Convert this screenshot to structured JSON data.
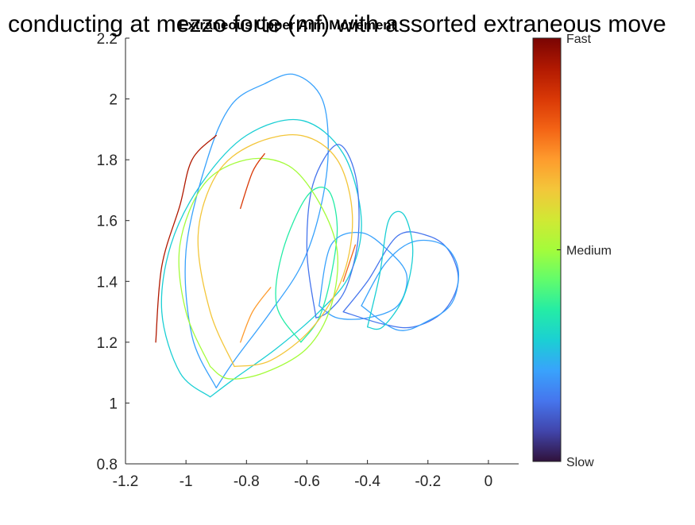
{
  "figure_title": "conducting at mezzo forte (mf) with assorted extraneous move",
  "chart_data": {
    "type": "line",
    "title": "Extraneous Upper Arm Movement",
    "xlabel": "",
    "ylabel": "",
    "xlim": [
      -1.2,
      0.1
    ],
    "ylim": [
      0.8,
      2.2
    ],
    "xticks": [
      -1.2,
      -1,
      -0.8,
      -0.6,
      -0.4,
      -0.2,
      0
    ],
    "xtick_labels": [
      "-1.2",
      "-1",
      "-0.8",
      "-0.6",
      "-0.4",
      "-0.2",
      "0"
    ],
    "yticks": [
      0.8,
      1,
      1.2,
      1.4,
      1.6,
      1.8,
      2,
      2.2
    ],
    "ytick_labels": [
      "0.8",
      "1",
      "1.2",
      "1.4",
      "1.6",
      "1.8",
      "2",
      "2.2"
    ],
    "grid": false,
    "colormap": "jet",
    "colorbar": {
      "label_top": "Fast",
      "label_middle": "Medium",
      "label_bottom": "Slow",
      "colors": [
        "#30123b",
        "#4145ab",
        "#4675ed",
        "#39a2fc",
        "#1bcfd4",
        "#24eca6",
        "#61fc6c",
        "#a4fc3b",
        "#d1e834",
        "#f3c63a",
        "#fe9b2d",
        "#f36315",
        "#d93806",
        "#b11901",
        "#7a0403"
      ]
    },
    "series": [
      {
        "speed": 0.45,
        "color": "#1bcfd4",
        "points": [
          [
            -0.92,
            1.02
          ],
          [
            -1.02,
            1.1
          ],
          [
            -1.08,
            1.3
          ],
          [
            -1.05,
            1.52
          ],
          [
            -0.95,
            1.72
          ],
          [
            -0.8,
            1.88
          ],
          [
            -0.62,
            1.93
          ],
          [
            -0.48,
            1.82
          ],
          [
            -0.42,
            1.6
          ],
          [
            -0.46,
            1.42
          ],
          [
            -0.56,
            1.3
          ],
          [
            -0.7,
            1.18
          ],
          [
            -0.84,
            1.08
          ],
          [
            -0.92,
            1.02
          ]
        ]
      },
      {
        "speed": 0.4,
        "color": "#39a2fc",
        "points": [
          [
            -0.9,
            1.05
          ],
          [
            -0.98,
            1.22
          ],
          [
            -1.0,
            1.5
          ],
          [
            -0.93,
            1.8
          ],
          [
            -0.85,
            1.98
          ],
          [
            -0.74,
            2.05
          ],
          [
            -0.64,
            2.08
          ],
          [
            -0.55,
            2.0
          ],
          [
            -0.53,
            1.82
          ],
          [
            -0.56,
            1.62
          ],
          [
            -0.62,
            1.45
          ],
          [
            -0.72,
            1.3
          ],
          [
            -0.84,
            1.14
          ],
          [
            -0.9,
            1.05
          ]
        ]
      },
      {
        "speed": 0.3,
        "color": "#4675ed",
        "points": [
          [
            -0.57,
            1.28
          ],
          [
            -0.6,
            1.5
          ],
          [
            -0.58,
            1.72
          ],
          [
            -0.5,
            1.85
          ],
          [
            -0.44,
            1.75
          ],
          [
            -0.43,
            1.55
          ],
          [
            -0.47,
            1.38
          ],
          [
            -0.53,
            1.3
          ],
          [
            -0.57,
            1.28
          ]
        ]
      },
      {
        "speed": 0.45,
        "color": "#24eca6",
        "points": [
          [
            -0.62,
            1.2
          ],
          [
            -0.7,
            1.32
          ],
          [
            -0.68,
            1.5
          ],
          [
            -0.6,
            1.68
          ],
          [
            -0.53,
            1.7
          ],
          [
            -0.5,
            1.58
          ],
          [
            -0.52,
            1.42
          ],
          [
            -0.56,
            1.28
          ],
          [
            -0.62,
            1.2
          ]
        ]
      },
      {
        "speed": 0.35,
        "color": "#39a2fc",
        "points": [
          [
            -0.56,
            1.32
          ],
          [
            -0.52,
            1.52
          ],
          [
            -0.42,
            1.56
          ],
          [
            -0.33,
            1.5
          ],
          [
            -0.27,
            1.42
          ],
          [
            -0.3,
            1.32
          ],
          [
            -0.4,
            1.28
          ],
          [
            -0.5,
            1.28
          ],
          [
            -0.56,
            1.32
          ]
        ]
      },
      {
        "speed": 0.3,
        "color": "#4675ed",
        "points": [
          [
            -0.48,
            1.3
          ],
          [
            -0.4,
            1.4
          ],
          [
            -0.3,
            1.55
          ],
          [
            -0.2,
            1.55
          ],
          [
            -0.13,
            1.5
          ],
          [
            -0.1,
            1.4
          ],
          [
            -0.15,
            1.3
          ],
          [
            -0.25,
            1.25
          ],
          [
            -0.35,
            1.26
          ],
          [
            -0.48,
            1.3
          ]
        ]
      },
      {
        "speed": 0.35,
        "color": "#39a2fc",
        "points": [
          [
            -0.42,
            1.32
          ],
          [
            -0.34,
            1.46
          ],
          [
            -0.25,
            1.53
          ],
          [
            -0.15,
            1.52
          ],
          [
            -0.1,
            1.44
          ],
          [
            -0.12,
            1.33
          ],
          [
            -0.2,
            1.27
          ],
          [
            -0.3,
            1.24
          ],
          [
            -0.42,
            1.32
          ]
        ]
      },
      {
        "speed": 0.4,
        "color": "#1bcfd4",
        "points": [
          [
            -0.4,
            1.25
          ],
          [
            -0.36,
            1.42
          ],
          [
            -0.33,
            1.6
          ],
          [
            -0.28,
            1.62
          ],
          [
            -0.25,
            1.5
          ],
          [
            -0.28,
            1.35
          ],
          [
            -0.35,
            1.25
          ],
          [
            -0.4,
            1.25
          ]
        ]
      },
      {
        "speed": 0.6,
        "color": "#a4fc3b",
        "points": [
          [
            -0.92,
            1.12
          ],
          [
            -1.0,
            1.3
          ],
          [
            -1.02,
            1.52
          ],
          [
            -0.94,
            1.72
          ],
          [
            -0.8,
            1.8
          ],
          [
            -0.66,
            1.78
          ],
          [
            -0.56,
            1.66
          ],
          [
            -0.5,
            1.5
          ],
          [
            -0.52,
            1.32
          ],
          [
            -0.6,
            1.18
          ],
          [
            -0.74,
            1.1
          ],
          [
            -0.86,
            1.08
          ],
          [
            -0.92,
            1.12
          ]
        ]
      },
      {
        "speed": 0.68,
        "color": "#f3c63a",
        "points": [
          [
            -0.84,
            1.12
          ],
          [
            -0.92,
            1.3
          ],
          [
            -0.96,
            1.55
          ],
          [
            -0.9,
            1.75
          ],
          [
            -0.78,
            1.85
          ],
          [
            -0.62,
            1.88
          ],
          [
            -0.5,
            1.8
          ],
          [
            -0.45,
            1.62
          ],
          [
            -0.48,
            1.42
          ],
          [
            -0.58,
            1.25
          ],
          [
            -0.72,
            1.14
          ],
          [
            -0.84,
            1.12
          ]
        ]
      },
      {
        "speed": 0.92,
        "color": "#b11901",
        "points": [
          [
            -1.1,
            1.2
          ],
          [
            -1.08,
            1.45
          ],
          [
            -1.02,
            1.65
          ],
          [
            -0.98,
            1.8
          ],
          [
            -0.9,
            1.88
          ]
        ]
      },
      {
        "speed": 0.88,
        "color": "#d93806",
        "points": [
          [
            -0.82,
            1.64
          ],
          [
            -0.78,
            1.76
          ],
          [
            -0.74,
            1.82
          ]
        ]
      },
      {
        "speed": 0.85,
        "color": "#f36315",
        "points": [
          [
            -0.48,
            1.4
          ],
          [
            -0.44,
            1.52
          ]
        ]
      },
      {
        "speed": 0.82,
        "color": "#fe9b2d",
        "points": [
          [
            -0.82,
            1.2
          ],
          [
            -0.78,
            1.3
          ],
          [
            -0.72,
            1.38
          ]
        ]
      }
    ]
  }
}
